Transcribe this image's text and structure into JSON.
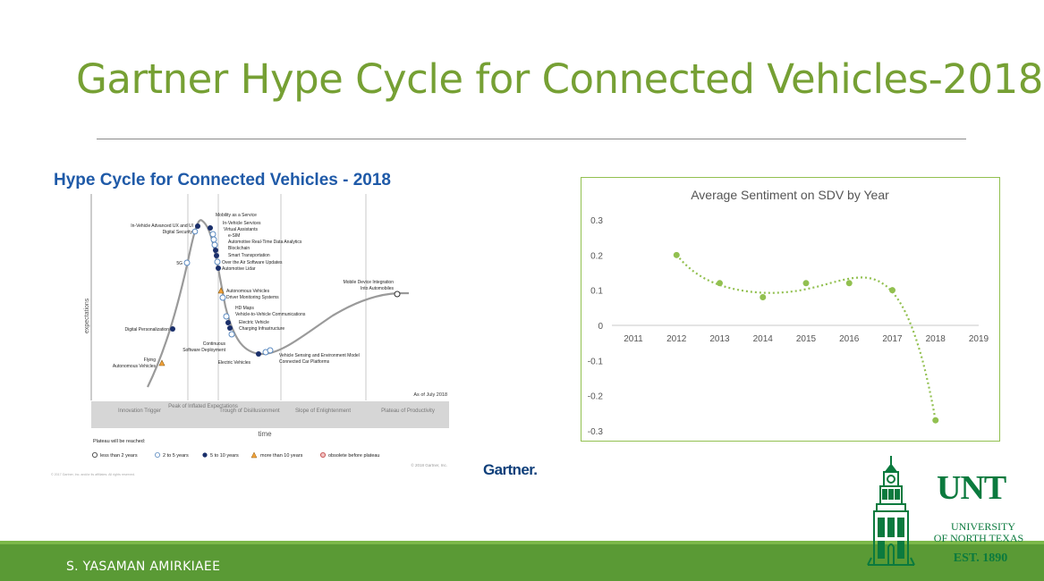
{
  "slide": {
    "title": "Gartner Hype Cycle for Connected Vehicles-2018",
    "author": "S. YASAMAN AMIRKIAEE"
  },
  "hype_cycle": {
    "title": "Hype Cycle for Connected Vehicles - 2018",
    "y_axis_label": "expectations",
    "x_axis_label": "time",
    "as_of": "As of July 2018",
    "phases": [
      "Innovation Trigger",
      "Peak of Inflated Expectations",
      "Trough of Disillusionment",
      "Slope of Enlightenment",
      "Plateau of Productivity"
    ],
    "technologies": {
      "mobility_as_a_service": "Mobility as a Service",
      "in_vehicle_advanced_ux": "In-Vehicle Advanced UX and UI",
      "in_vehicle_services": "In-Vehicle Services",
      "digital_security": "Digital Security",
      "virtual_assistants": "Virtual Assistants",
      "e_sim": "e-SIM",
      "automotive_real_time": "Automotive Real-Time Data Analytics",
      "blockchain": "Blockchain",
      "five_g": "5G",
      "smart_transportation": "Smart Transportation",
      "over_the_air": "Over the Air Software Updates",
      "automotive_lidar": "Automotive Lidar",
      "mobile_device_integration_1": "Mobile Device Integration",
      "mobile_device_integration_2": "Into Automobiles",
      "autonomous_vehicles_peak": "Autonomous Vehicles",
      "driver_monitoring": "Driver Monitoring Systems",
      "hd_maps": "HD Maps",
      "v2v": "Vehicle-to-Vehicle Communications",
      "digital_personalization": "Digital Personalization",
      "electric_vehicle": "Electric Vehicle",
      "charging_infrastructure": "Charging Infrastructure",
      "continuous_1": "Continuous",
      "continuous_2": "Software Deployment",
      "flying_1": "Flying",
      "flying_2": "Autonomous Vehicles",
      "vehicle_sensing": "Vehicle Sensing and Environment Model",
      "connected_car": "Connected Car Platforms",
      "electric_vehicles": "Electric Vehicles"
    },
    "legend_title": "Plateau will be reached:",
    "legend": [
      "less than 2 years",
      "2 to 5 years",
      "5 to 10 years",
      "more than 10 years",
      "obsolete before plateau"
    ],
    "copyright": "© 2018 Gartner, Inc.",
    "footnote": "© 2017 Gartner, Inc. and/or its affiliates. All rights reserved.",
    "brand": "Gartner."
  },
  "chart_data": {
    "type": "scatter",
    "title": "Average Sentiment on SDV by Year",
    "x": [
      2012,
      2013,
      2014,
      2015,
      2016,
      2017,
      2018
    ],
    "y": [
      0.2,
      0.12,
      0.08,
      0.12,
      0.12,
      0.1,
      -0.27
    ],
    "x_ticks": [
      2011,
      2012,
      2013,
      2014,
      2015,
      2016,
      2017,
      2018,
      2019
    ],
    "y_ticks": [
      0.3,
      0.2,
      0.1,
      0,
      -0.1,
      -0.2,
      -0.3
    ],
    "xlim": [
      2011,
      2019
    ],
    "ylim": [
      -0.3,
      0.3
    ],
    "trendline": "polynomial",
    "color": "#92c050"
  },
  "logo": {
    "main": "UNT",
    "line1": "UNIVERSITY",
    "line2": "OF NORTH TEXAS",
    "est": "EST. 1890"
  },
  "colors": {
    "title": "#76a034",
    "footer": "#5a9a35",
    "chart": "#92c050",
    "unt": "#0b7a3e"
  }
}
